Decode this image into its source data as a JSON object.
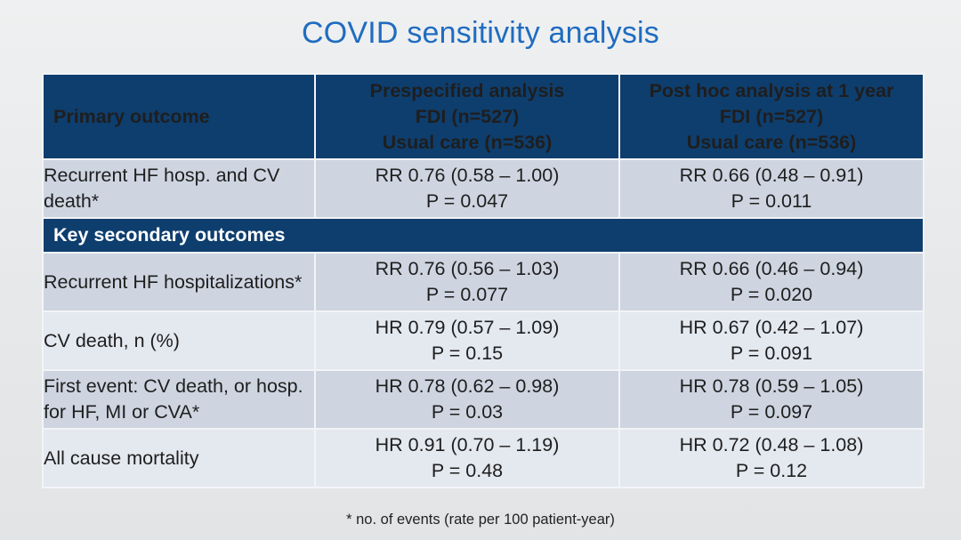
{
  "slide": {
    "title": "COVID sensitivity analysis",
    "footnote": "* no. of events (rate per 100 patient-year)"
  },
  "table": {
    "header": {
      "col1": "Primary outcome",
      "col2": [
        "Prespecified analysis",
        "FDI (n=527)",
        "Usual care (n=536)"
      ],
      "col3": [
        "Post hoc analysis at 1 year",
        "FDI (n=527)",
        "Usual care (n=536)"
      ]
    },
    "primary_rows": [
      {
        "label": "Recurrent HF hosp. and CV death*",
        "prespecified": [
          "RR 0.76 (0.58 – 1.00)",
          "P = 0.047"
        ],
        "posthoc": [
          "RR 0.66 (0.48 – 0.91)",
          "P = 0.011"
        ]
      }
    ],
    "section_label": "Key secondary outcomes",
    "secondary_rows": [
      {
        "label": "Recurrent HF hospitalizations*",
        "prespecified": [
          "RR 0.76 (0.56 – 1.03)",
          "P = 0.077"
        ],
        "posthoc": [
          "RR 0.66 (0.46 – 0.94)",
          "P = 0.020"
        ]
      },
      {
        "label": "CV death, n (%)",
        "prespecified": [
          "HR 0.79 (0.57 – 1.09)",
          "P = 0.15"
        ],
        "posthoc": [
          "HR 0.67 (0.42 – 1.07)",
          "P = 0.091"
        ]
      },
      {
        "label": "First event: CV death, or hosp. for HF, MI or CVA*",
        "prespecified": [
          "HR 0.78 (0.62 – 0.98)",
          "P = 0.03"
        ],
        "posthoc": [
          "HR 0.78 (0.59 – 1.05)",
          "P = 0.097"
        ]
      },
      {
        "label": "All cause mortality",
        "prespecified": [
          "HR 0.91 (0.70 – 1.19)",
          "P = 0.48"
        ],
        "posthoc": [
          "HR 0.72 (0.48 – 1.08)",
          "P = 0.12"
        ]
      }
    ]
  }
}
